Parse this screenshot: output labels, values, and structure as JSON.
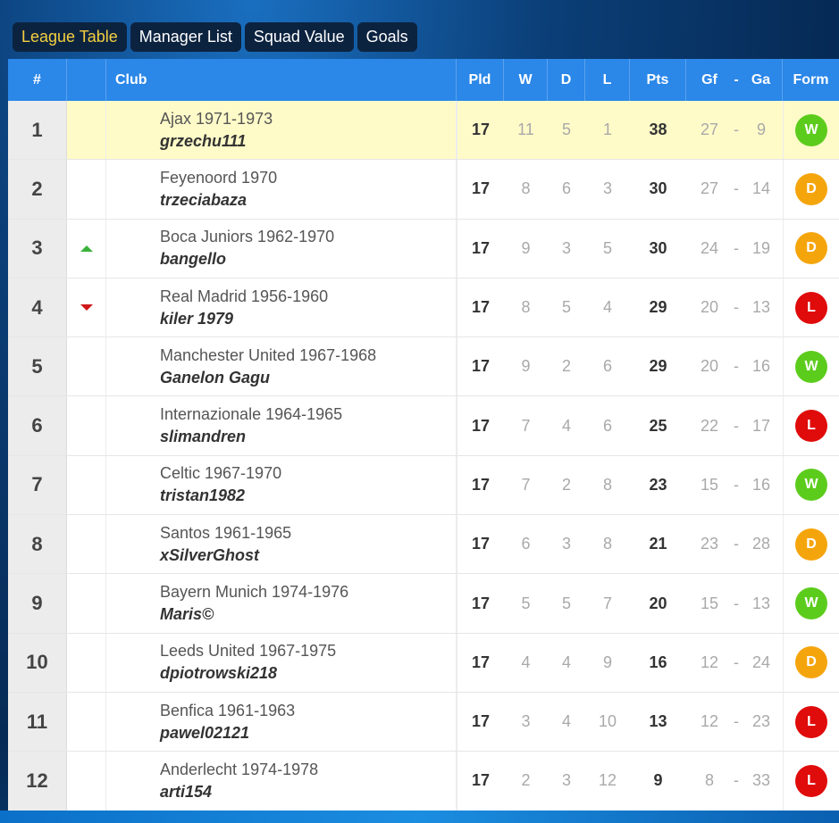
{
  "tabs": [
    {
      "label": "League Table",
      "active": true
    },
    {
      "label": "Manager List",
      "active": false
    },
    {
      "label": "Squad Value",
      "active": false
    },
    {
      "label": "Goals",
      "active": false
    }
  ],
  "header": {
    "rank": "#",
    "club": "Club",
    "pld": "Pld",
    "w": "W",
    "d": "D",
    "l": "L",
    "pts": "Pts",
    "gf": "Gf",
    "sep": "-",
    "ga": "Ga",
    "form": "Form"
  },
  "form_colors": {
    "W": "#5ccc1c",
    "D": "#f5a50c",
    "L": "#e00b0b"
  },
  "rows": [
    {
      "rank": "1",
      "move": "",
      "club": "Ajax 1971-1973",
      "manager": "grzechu111",
      "pld": "17",
      "w": "11",
      "d": "5",
      "l": "1",
      "pts": "38",
      "gf": "27",
      "ga": "9",
      "form": "W"
    },
    {
      "rank": "2",
      "move": "",
      "club": "Feyenoord 1970",
      "manager": "trzeciabaza",
      "pld": "17",
      "w": "8",
      "d": "6",
      "l": "3",
      "pts": "30",
      "gf": "27",
      "ga": "14",
      "form": "D"
    },
    {
      "rank": "3",
      "move": "up",
      "club": "Boca Juniors 1962-1970",
      "manager": "bangello",
      "pld": "17",
      "w": "9",
      "d": "3",
      "l": "5",
      "pts": "30",
      "gf": "24",
      "ga": "19",
      "form": "D"
    },
    {
      "rank": "4",
      "move": "down",
      "club": "Real Madrid 1956-1960",
      "manager": "kiler 1979",
      "pld": "17",
      "w": "8",
      "d": "5",
      "l": "4",
      "pts": "29",
      "gf": "20",
      "ga": "13",
      "form": "L"
    },
    {
      "rank": "5",
      "move": "",
      "club": "Manchester United 1967-1968",
      "manager": "Ganelon Gagu",
      "pld": "17",
      "w": "9",
      "d": "2",
      "l": "6",
      "pts": "29",
      "gf": "20",
      "ga": "16",
      "form": "W"
    },
    {
      "rank": "6",
      "move": "",
      "club": "Internazionale 1964-1965",
      "manager": "slimandren",
      "pld": "17",
      "w": "7",
      "d": "4",
      "l": "6",
      "pts": "25",
      "gf": "22",
      "ga": "17",
      "form": "L"
    },
    {
      "rank": "7",
      "move": "",
      "club": "Celtic 1967-1970",
      "manager": "tristan1982",
      "pld": "17",
      "w": "7",
      "d": "2",
      "l": "8",
      "pts": "23",
      "gf": "15",
      "ga": "16",
      "form": "W"
    },
    {
      "rank": "8",
      "move": "",
      "club": "Santos 1961-1965",
      "manager": "xSilverGhost",
      "pld": "17",
      "w": "6",
      "d": "3",
      "l": "8",
      "pts": "21",
      "gf": "23",
      "ga": "28",
      "form": "D"
    },
    {
      "rank": "9",
      "move": "",
      "club": "Bayern Munich 1974-1976",
      "manager": "Maris©",
      "pld": "17",
      "w": "5",
      "d": "5",
      "l": "7",
      "pts": "20",
      "gf": "15",
      "ga": "13",
      "form": "W"
    },
    {
      "rank": "10",
      "move": "",
      "club": "Leeds United 1967-1975",
      "manager": "dpiotrowski218",
      "pld": "17",
      "w": "4",
      "d": "4",
      "l": "9",
      "pts": "16",
      "gf": "12",
      "ga": "24",
      "form": "D"
    },
    {
      "rank": "11",
      "move": "",
      "club": "Benfica 1961-1963",
      "manager": "pawel02121",
      "pld": "17",
      "w": "3",
      "d": "4",
      "l": "10",
      "pts": "13",
      "gf": "12",
      "ga": "23",
      "form": "L"
    },
    {
      "rank": "12",
      "move": "",
      "club": "Anderlecht 1974-1978",
      "manager": "arti154",
      "pld": "17",
      "w": "2",
      "d": "3",
      "l": "12",
      "pts": "9",
      "gf": "8",
      "ga": "33",
      "form": "L"
    }
  ]
}
